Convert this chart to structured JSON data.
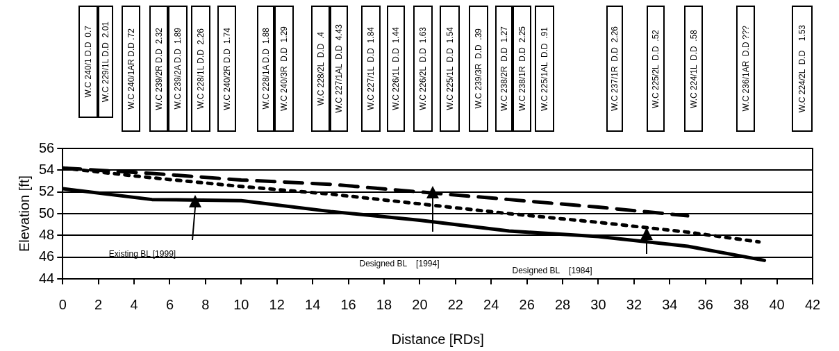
{
  "chart_data": {
    "type": "line",
    "xlabel": "Distance [RDs]",
    "ylabel": "Elevation [ft]",
    "xlim": [
      0,
      42
    ],
    "xticks": [
      0,
      2,
      4,
      6,
      8,
      10,
      12,
      14,
      16,
      18,
      20,
      22,
      24,
      26,
      28,
      30,
      32,
      34,
      36,
      38,
      40,
      42
    ],
    "ylim": [
      44,
      56
    ],
    "yticks": [
      44,
      46,
      48,
      50,
      52,
      54,
      56
    ],
    "grid": "y",
    "legend": false,
    "marker": "none",
    "series": [
      {
        "color": "#000000",
        "line_style": "solid",
        "x": [
          0,
          5,
          10,
          15,
          20,
          25,
          30,
          35,
          39.3
        ],
        "values": [
          52.3,
          51.3,
          51.2,
          50.2,
          49.4,
          48.4,
          47.9,
          47.0,
          45.7
        ]
      },
      {
        "color": "#000000",
        "line_style": "dashed",
        "x": [
          0,
          5,
          10,
          15,
          20,
          25,
          30,
          35
        ],
        "values": [
          54.2,
          53.7,
          53.1,
          52.7,
          52.0,
          51.3,
          50.6,
          49.8
        ]
      },
      {
        "color": "#000000",
        "line_style": "dotted",
        "x": [
          0,
          5,
          10,
          15,
          20,
          25,
          30,
          35,
          39
        ],
        "values": [
          54.2,
          53.3,
          52.5,
          51.8,
          50.9,
          50.0,
          49.2,
          48.3,
          47.4
        ]
      }
    ],
    "annotations": [
      "Existing BL [1999]",
      "Designed BL    [1994]",
      "Designed BL    [1984]",
      "W.C 240/1 D.D  0.7",
      "W.C 229/1L D.D  2.01",
      "W.C 240/1AR D.D .72",
      "W.C 239/2R D.D  2.32",
      "W.C 239/2A D.D  1.89",
      "W.C 228/1L D.D  2.26",
      "W.C 240/2R D.D  1.74",
      "W.C 228/1A D.D  1.88",
      "W.C 240/3R  D.D  1.29",
      "W.C 228/2L  D.D  .4",
      "W.C 227/1AL  D.D  4.43",
      "W.C 227/1L  D.D  1.84",
      "W.C 226/1L  D.D  1.44",
      "W.C 226/2L  D.D  1.63",
      "W.C 225/1L  D.D  1.54",
      "W.C 239/3R  D.D  .39",
      "W.C 238/2R  D.D  1.27",
      "W.C 238/1R  D.D  2.25",
      "W.C 225/1AL  D.D  .91",
      "W.C 237/1R  D.D  2.26",
      "W.C 225/2L  D.D  .52",
      "W.C 224/1L  D.D  .58",
      "W.C 236/1AR  D.D ???",
      "W.C 224/2L  D.D    1.53"
    ]
  }
}
